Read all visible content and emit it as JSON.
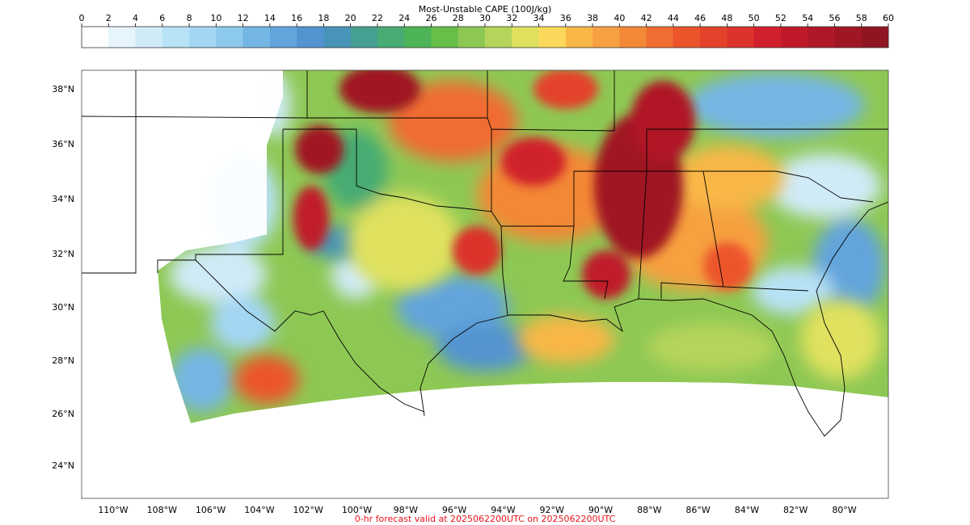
{
  "colorbar": {
    "title": "Most-Unstable CAPE (100J/kg)",
    "ticks": [
      "0",
      "2",
      "4",
      "6",
      "8",
      "10",
      "12",
      "14",
      "16",
      "18",
      "20",
      "22",
      "24",
      "26",
      "28",
      "30",
      "32",
      "34",
      "36",
      "38",
      "40",
      "42",
      "44",
      "46",
      "48",
      "50",
      "52",
      "54",
      "56",
      "58",
      "60"
    ],
    "colors": [
      "#ffffff",
      "#e6f5fc",
      "#d0ebf8",
      "#b8e2f6",
      "#a3d6f4",
      "#8cc9ec",
      "#74b6e4",
      "#62a4dc",
      "#5294d0",
      "#4893b8",
      "#46a092",
      "#47ab73",
      "#4cb456",
      "#65bf48",
      "#8ec854",
      "#b5d45a",
      "#dfe15e",
      "#fad95a",
      "#f8b747",
      "#f6a041",
      "#f38836",
      "#f06c30",
      "#ec542c",
      "#e4432b",
      "#dc332c",
      "#d0202c",
      "#c01a2a",
      "#b01828",
      "#a01624",
      "#901522"
    ]
  },
  "map": {
    "lat_labels": [
      "38°N",
      "36°N",
      "34°N",
      "32°N",
      "30°N",
      "28°N",
      "26°N",
      "24°N"
    ],
    "lon_labels": [
      "110°W",
      "108°W",
      "106°W",
      "104°W",
      "102°W",
      "100°W",
      "98°W",
      "96°W",
      "94°W",
      "92°W",
      "90°W",
      "88°W",
      "86°W",
      "84°W",
      "82°W",
      "80°W"
    ],
    "cape_field_description_colors": {
      "high": "#a01624",
      "mid": "#f38836",
      "low": "#5294d0",
      "none": "#ffffff"
    }
  },
  "footer": {
    "valid_text": "0-hr forecast valid at 2025062200UTC on 2025062200UTC",
    "color": "#e8141c"
  }
}
